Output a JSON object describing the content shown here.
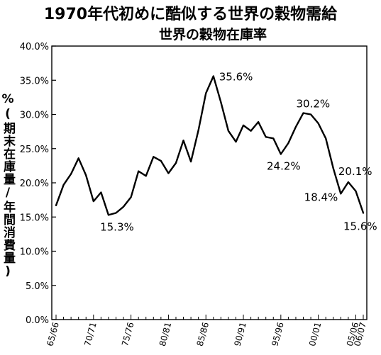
{
  "chart_data": {
    "type": "line",
    "title": "1970年代初めに酷似する世界の穀物需給",
    "subtitle": "世界の穀物在庫率",
    "ylabel": "%(期末在庫量/年間消費量)",
    "ylim": [
      0,
      40
    ],
    "yticks": [
      "0.0%",
      "5.0%",
      "10.0%",
      "15.0%",
      "20.0%",
      "25.0%",
      "30.0%",
      "35.0%",
      "40.0%"
    ],
    "xtick_labels": [
      "65/66",
      "70/71",
      "75/76",
      "80/81",
      "85/86",
      "90/91",
      "95/96",
      "00/01",
      "05/06",
      "06/07"
    ],
    "grid": false,
    "series": [
      {
        "x": [
          "65/66",
          "66/67",
          "67/68",
          "68/69",
          "69/70",
          "70/71",
          "71/72",
          "72/73",
          "73/74",
          "74/75",
          "75/76",
          "76/77",
          "77/78",
          "78/79",
          "79/80",
          "80/81",
          "81/82",
          "82/83",
          "83/84",
          "84/85",
          "85/86",
          "86/87",
          "87/88",
          "88/89",
          "89/90",
          "90/91",
          "91/92",
          "92/93",
          "93/94",
          "94/95",
          "95/96",
          "96/97",
          "97/98",
          "98/99",
          "99/00",
          "00/01",
          "01/02",
          "02/03",
          "03/04",
          "04/05",
          "05/06",
          "06/07"
        ],
        "values": [
          16.7,
          19.7,
          21.3,
          23.6,
          21.1,
          17.3,
          18.6,
          15.3,
          15.6,
          16.5,
          17.9,
          21.7,
          21.0,
          23.8,
          23.2,
          21.4,
          22.9,
          26.2,
          23.1,
          27.7,
          33.1,
          35.6,
          31.8,
          27.6,
          26.0,
          28.4,
          27.6,
          28.9,
          26.7,
          26.5,
          24.2,
          25.8,
          28.2,
          30.2,
          30.0,
          28.7,
          26.5,
          22.1,
          18.4,
          20.1,
          18.8,
          15.6
        ]
      }
    ],
    "annotations": [
      {
        "text": "15.3%",
        "x": "72/73",
        "y": 15.3
      },
      {
        "text": "35.6%",
        "x": "86/87",
        "y": 35.6
      },
      {
        "text": "24.2%",
        "x": "95/96",
        "y": 24.2
      },
      {
        "text": "30.2%",
        "x": "98/99",
        "y": 30.2
      },
      {
        "text": "20.1%",
        "x": "04/05",
        "y": 20.1
      },
      {
        "text": "18.4%",
        "x": "03/04",
        "y": 18.4
      },
      {
        "text": "15.6%",
        "x": "06/07",
        "y": 15.6
      }
    ]
  }
}
